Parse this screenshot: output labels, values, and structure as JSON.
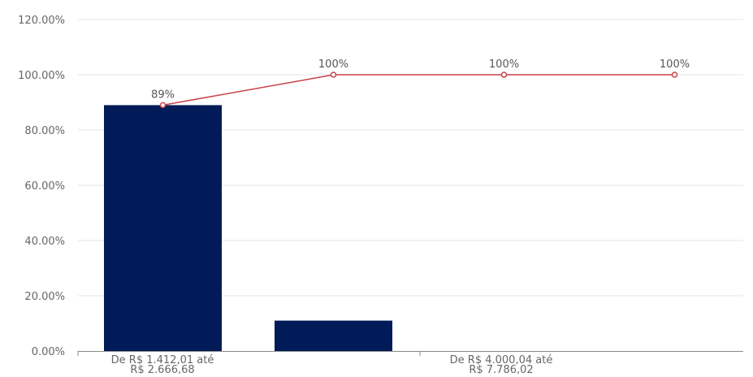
{
  "colors": {
    "bar": "#001b57",
    "line": "#c8414a",
    "grid": "#e6e6e6",
    "axis": "#8a8a8a",
    "tick_text": "#666666",
    "label_text": "#555555"
  },
  "chart_data": {
    "type": "bar",
    "title": "",
    "xlabel": "",
    "ylabel": "",
    "ylim": [
      0,
      120
    ],
    "yticks": [
      "120.00%",
      "100.00%",
      "80.00%",
      "60.00%",
      "40.00%",
      "20.00%",
      "0.00%"
    ],
    "x_tick_labels": [
      {
        "line1": "De  R$ 1.412,01 até",
        "line2": "R$ 2.666,68"
      },
      {
        "line1": "De  R$ 4.000,04 até",
        "line2": "R$ 7.786,02"
      }
    ],
    "bars": {
      "values": [
        89,
        11,
        0,
        0
      ]
    },
    "cumulative_line": {
      "values": [
        89,
        100,
        100,
        100
      ],
      "labels": [
        "89%",
        "100%",
        "100%",
        "100%"
      ]
    },
    "grid": true,
    "legend": "none"
  }
}
